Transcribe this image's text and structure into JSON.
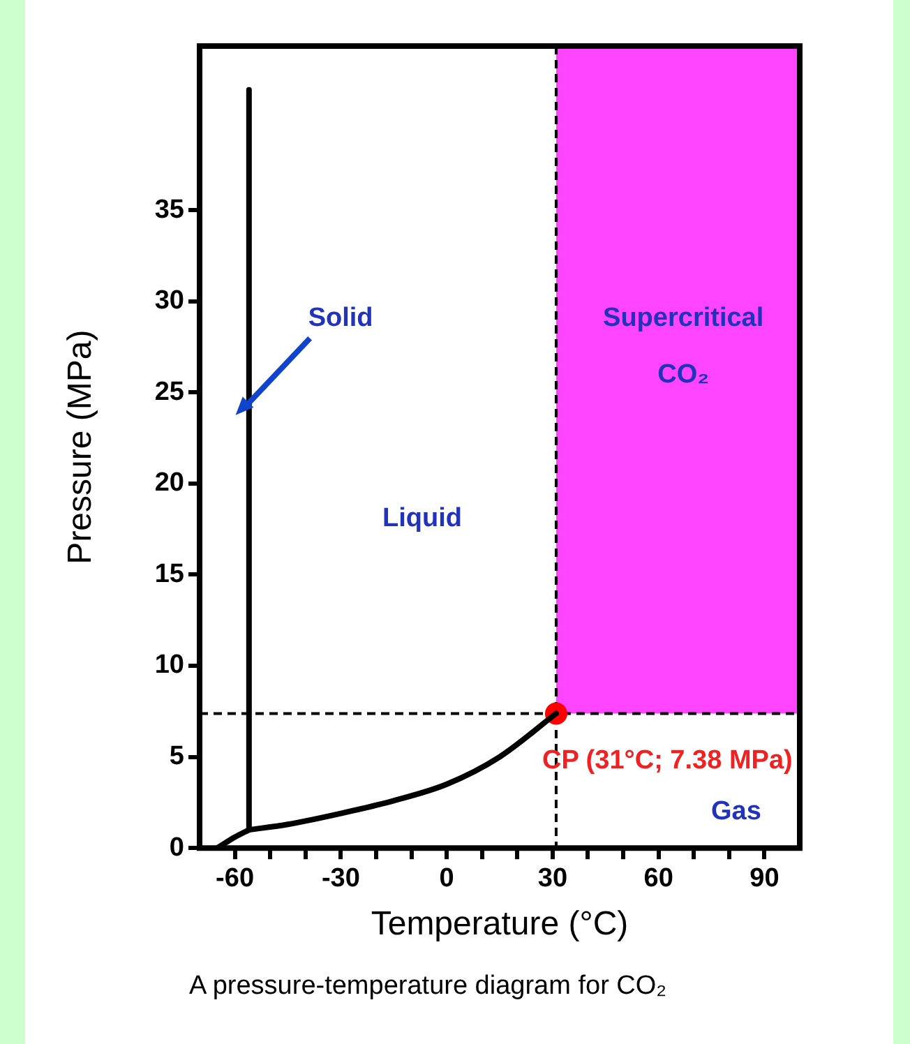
{
  "chart_data": {
    "type": "line",
    "title": "A pressure-temperature diagram for CO₂",
    "xlabel": "Temperature (°C)",
    "ylabel": "Pressure (MPa)",
    "xlim": [
      -70,
      100
    ],
    "ylim": [
      0,
      44
    ],
    "xticks": [
      -60,
      {
        "value": -50,
        "label": null
      },
      {
        "value": -40,
        "label": null
      },
      -30,
      {
        "value": -20,
        "label": null
      },
      {
        "value": -10,
        "label": null
      },
      0,
      {
        "value": 10,
        "label": null
      },
      {
        "value": 20,
        "label": null
      },
      30,
      {
        "value": 40,
        "label": null
      },
      {
        "value": 50,
        "label": null
      },
      60,
      {
        "value": 70,
        "label": null
      },
      {
        "value": 80,
        "label": null
      },
      90
    ],
    "yticks": [
      0,
      5,
      10,
      15,
      20,
      25,
      30,
      35
    ],
    "series": [
      {
        "color": "#000000",
        "x": [
          -65,
          -60,
          -56
        ],
        "values": [
          0,
          0.6,
          1.0
        ]
      },
      {
        "color": "#000000",
        "x": [
          -56,
          -45,
          -30,
          -15,
          0,
          15,
          31
        ],
        "values": [
          1.0,
          1.3,
          1.9,
          2.6,
          3.5,
          5.0,
          7.38
        ]
      },
      {
        "color": "#000000",
        "x": [
          -56,
          -56
        ],
        "values": [
          1.0,
          41.6
        ]
      },
      {
        "type": "scatter",
        "color": "#ff0000",
        "x": [
          31
        ],
        "values": [
          7.38
        ]
      }
    ],
    "ref_lines": [
      {
        "axis": "x",
        "value": 31,
        "line_style": "dashed"
      },
      {
        "axis": "y",
        "value": 7.38,
        "line_style": "dashed"
      }
    ],
    "bands": [
      {
        "axis": "x",
        "from": 31,
        "to": 100,
        "color": "#ff44ff"
      }
    ],
    "annotations": [
      "Solid",
      "Liquid",
      "Supercritical",
      "CO₂",
      "Gas",
      {
        "text": "CP (31°C; 7.38 MPa)",
        "x": 31,
        "y": 7.38
      }
    ],
    "grid": false,
    "legend": false,
    "line_style": "solid"
  }
}
